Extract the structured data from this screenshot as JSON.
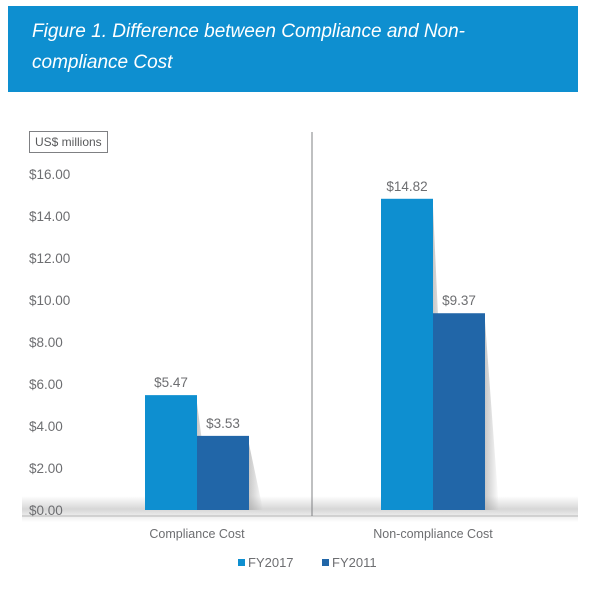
{
  "header": {
    "title": "Figure 1. Difference between Compliance and Non-compliance Cost",
    "color": "#0e8fd0"
  },
  "chart_data": {
    "type": "bar",
    "title": "Figure 1. Difference between Compliance and Non-compliance Cost",
    "ylabel": "US$ millions",
    "xlabel": "",
    "categories": [
      "Compliance Cost",
      "Non-compliance Cost"
    ],
    "series": [
      {
        "name": "FY2017",
        "values": [
          5.47,
          14.82
        ],
        "labels": [
          "$5.47",
          "$14.82"
        ],
        "color": "#0e8fd0"
      },
      {
        "name": "FY2011",
        "values": [
          3.53,
          9.37
        ],
        "labels": [
          "$3.53",
          "$9.37"
        ],
        "color": "#2166a8"
      }
    ],
    "ylim": [
      0,
      16
    ],
    "yticks": [
      0,
      2,
      4,
      6,
      8,
      10,
      12,
      14,
      16
    ],
    "ytick_labels": [
      "$0.00",
      "$2.00",
      "$4.00",
      "$6.00",
      "$8.00",
      "$10.00",
      "$12.00",
      "$14.00",
      "$16.00"
    ],
    "grid": false,
    "legend_position": "bottom-center"
  }
}
